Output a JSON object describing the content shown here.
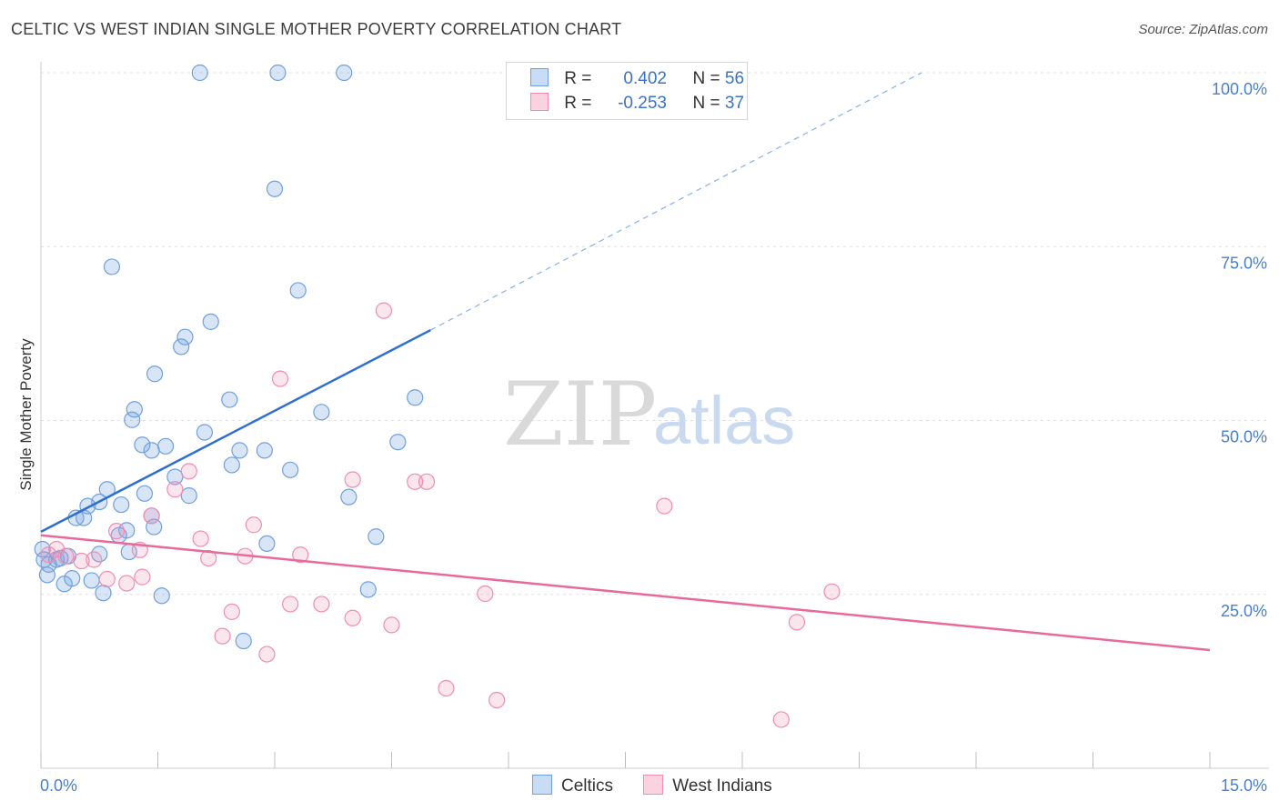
{
  "title": "CELTIC VS WEST INDIAN SINGLE MOTHER POVERTY CORRELATION CHART",
  "source": "Source: ZipAtlas.com",
  "watermark": {
    "part1": "ZIP",
    "part2": "atlas"
  },
  "legend": {
    "rows": [
      {
        "r_label": "R =",
        "r_value": "0.402",
        "n_label": "N =",
        "n_value": "56",
        "color": "#6fa0e0"
      },
      {
        "r_label": "R =",
        "r_value": "-0.253",
        "n_label": "N =",
        "n_value": "37",
        "color": "#f08db0"
      }
    ]
  },
  "bottom_legend": [
    "Celtics",
    "West Indians"
  ],
  "chart_data": {
    "type": "scatter",
    "xlabel": "",
    "ylabel": "Single Mother Poverty",
    "xlim": [
      0,
      15
    ],
    "ylim": [
      0,
      100
    ],
    "x_ticks": [
      "0.0%",
      "15.0%"
    ],
    "y_ticks": [
      "25.0%",
      "50.0%",
      "75.0%",
      "100.0%"
    ],
    "y_tick_values": [
      25,
      50,
      75,
      100
    ],
    "grid": true,
    "colors": {
      "celtics": "#6fa0e0",
      "west_indians": "#f08db0",
      "celtics_line": "#2e6fcf",
      "west_indians_line": "#e8699a"
    },
    "series": [
      {
        "name": "Celtics",
        "points": [
          [
            2.04,
            100
          ],
          [
            3.04,
            100
          ],
          [
            3.89,
            100
          ],
          [
            3.0,
            83.3
          ],
          [
            0.91,
            72.1
          ],
          [
            3.3,
            68.7
          ],
          [
            2.18,
            64.2
          ],
          [
            1.85,
            62.0
          ],
          [
            1.8,
            60.6
          ],
          [
            1.46,
            56.7
          ],
          [
            2.42,
            53.0
          ],
          [
            4.8,
            53.3
          ],
          [
            1.2,
            51.6
          ],
          [
            1.17,
            50.1
          ],
          [
            3.6,
            51.2
          ],
          [
            2.1,
            48.3
          ],
          [
            1.3,
            46.5
          ],
          [
            1.6,
            46.3
          ],
          [
            1.42,
            45.7
          ],
          [
            2.55,
            45.7
          ],
          [
            2.87,
            45.7
          ],
          [
            4.58,
            46.9
          ],
          [
            2.45,
            43.6
          ],
          [
            3.2,
            42.9
          ],
          [
            1.72,
            41.9
          ],
          [
            1.9,
            39.2
          ],
          [
            1.33,
            39.5
          ],
          [
            3.95,
            39.0
          ],
          [
            0.85,
            40.1
          ],
          [
            0.75,
            38.3
          ],
          [
            1.03,
            37.9
          ],
          [
            0.6,
            37.7
          ],
          [
            0.45,
            36.0
          ],
          [
            0.55,
            36.0
          ],
          [
            1.42,
            36.3
          ],
          [
            1.45,
            34.7
          ],
          [
            1.1,
            34.2
          ],
          [
            1.0,
            33.5
          ],
          [
            4.3,
            33.3
          ],
          [
            2.9,
            32.3
          ],
          [
            1.13,
            31.1
          ],
          [
            0.75,
            30.8
          ],
          [
            0.25,
            30.2
          ],
          [
            0.35,
            30.5
          ],
          [
            0.2,
            30.0
          ],
          [
            0.04,
            30.0
          ],
          [
            0.1,
            29.3
          ],
          [
            0.08,
            27.8
          ],
          [
            0.4,
            27.3
          ],
          [
            0.65,
            27.0
          ],
          [
            0.3,
            26.5
          ],
          [
            0.8,
            25.2
          ],
          [
            1.55,
            24.8
          ],
          [
            4.2,
            25.7
          ],
          [
            2.6,
            18.3
          ],
          [
            0.02,
            31.5
          ]
        ]
      },
      {
        "name": "West Indians",
        "points": [
          [
            4.4,
            65.8
          ],
          [
            3.07,
            56.0
          ],
          [
            1.9,
            42.7
          ],
          [
            1.72,
            40.1
          ],
          [
            4.0,
            41.5
          ],
          [
            4.8,
            41.2
          ],
          [
            4.95,
            41.2
          ],
          [
            8.0,
            37.7
          ],
          [
            1.42,
            36.3
          ],
          [
            2.73,
            35.0
          ],
          [
            0.97,
            34.1
          ],
          [
            2.05,
            33.0
          ],
          [
            1.27,
            31.4
          ],
          [
            0.2,
            31.5
          ],
          [
            0.1,
            30.7
          ],
          [
            2.15,
            30.2
          ],
          [
            2.62,
            30.5
          ],
          [
            3.33,
            30.7
          ],
          [
            0.52,
            29.8
          ],
          [
            0.68,
            30.0
          ],
          [
            0.85,
            27.2
          ],
          [
            1.1,
            26.6
          ],
          [
            1.3,
            27.5
          ],
          [
            0.32,
            30.5
          ],
          [
            5.7,
            25.1
          ],
          [
            10.15,
            25.4
          ],
          [
            3.2,
            23.6
          ],
          [
            3.6,
            23.6
          ],
          [
            2.45,
            22.5
          ],
          [
            4.0,
            21.6
          ],
          [
            4.5,
            20.6
          ],
          [
            9.7,
            21.0
          ],
          [
            2.33,
            19.0
          ],
          [
            2.9,
            16.4
          ],
          [
            5.2,
            11.5
          ],
          [
            5.85,
            9.8
          ],
          [
            9.5,
            7.0
          ]
        ]
      }
    ],
    "trendlines": [
      {
        "series": "Celtics",
        "x": [
          0.0,
          5.0
        ],
        "y": [
          34.0,
          63.0
        ],
        "dashed_to": [
          11.3,
          100.0
        ]
      },
      {
        "series": "West Indians",
        "x": [
          0.0,
          15.0
        ],
        "y": [
          33.5,
          17.0
        ]
      }
    ]
  }
}
